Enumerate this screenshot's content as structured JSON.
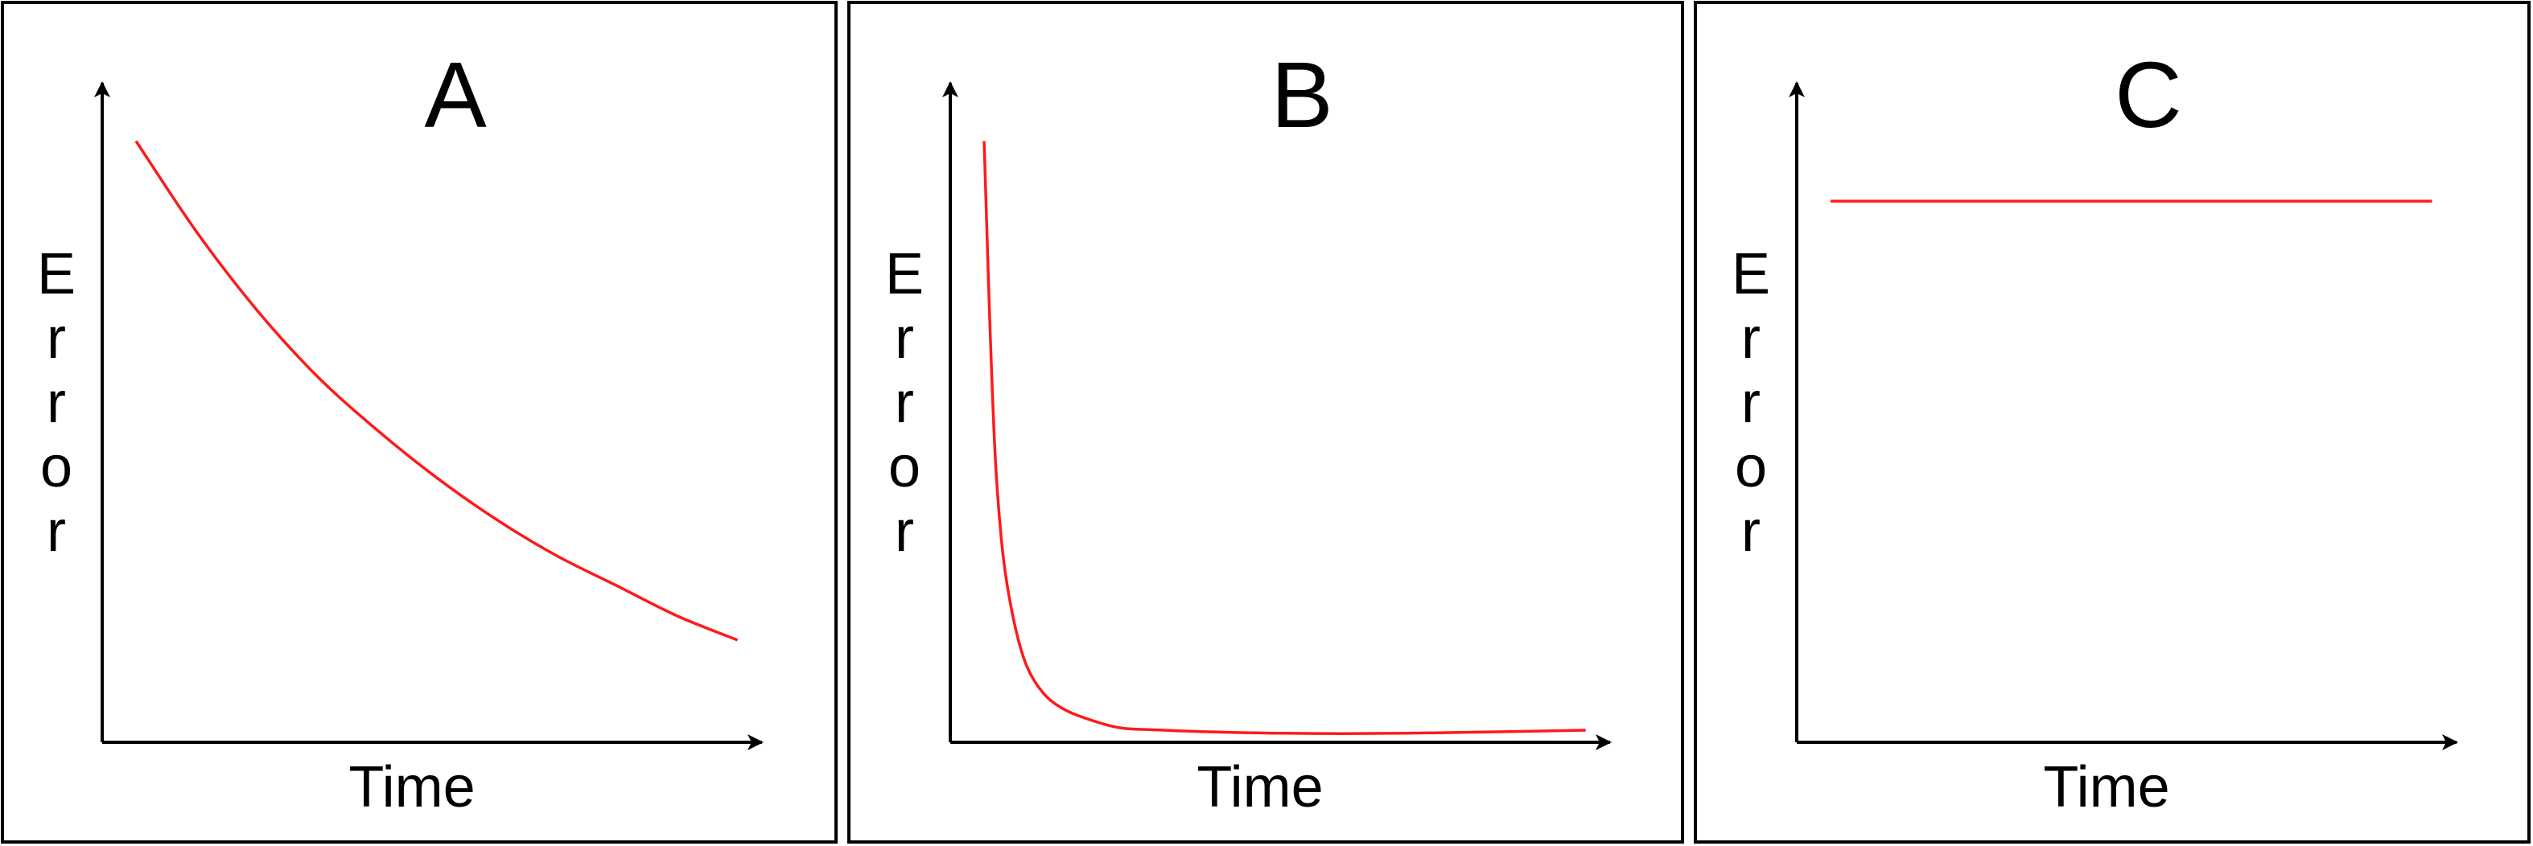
{
  "chart_data": [
    {
      "type": "line",
      "title": "A",
      "xlabel": "Time",
      "ylabel": "Error",
      "curve": "gradual-decay",
      "x": [
        0.0,
        0.1,
        0.2,
        0.3,
        0.4,
        0.5,
        0.6,
        0.7,
        0.8,
        0.9,
        1.0
      ],
      "series": [
        {
          "values": [
            1.0,
            0.85,
            0.72,
            0.61,
            0.52,
            0.44,
            0.37,
            0.31,
            0.26,
            0.21,
            0.17
          ]
        }
      ],
      "ylim": [
        0,
        1.05
      ],
      "xlim": [
        0,
        1.05
      ],
      "line_color": "#ff1a1a",
      "grid": false
    },
    {
      "type": "line",
      "title": "B",
      "xlabel": "Time",
      "ylabel": "Error",
      "curve": "rapid-decay",
      "x": [
        0.0,
        0.02,
        0.05,
        0.1,
        0.2,
        0.3,
        0.5,
        0.7,
        1.0
      ],
      "series": [
        {
          "values": [
            1.0,
            0.45,
            0.2,
            0.08,
            0.03,
            0.02,
            0.015,
            0.015,
            0.02
          ]
        }
      ],
      "ylim": [
        0,
        1.05
      ],
      "xlim": [
        0,
        1.05
      ],
      "line_color": "#ff1a1a",
      "grid": false
    },
    {
      "type": "line",
      "title": "C",
      "xlabel": "Time",
      "ylabel": "Error",
      "curve": "flat",
      "x": [
        0.0,
        1.0
      ],
      "series": [
        {
          "values": [
            0.9,
            0.9
          ]
        }
      ],
      "ylim": [
        0,
        1.05
      ],
      "xlim": [
        0,
        1.05
      ],
      "line_color": "#ff1a1a",
      "grid": false
    }
  ]
}
